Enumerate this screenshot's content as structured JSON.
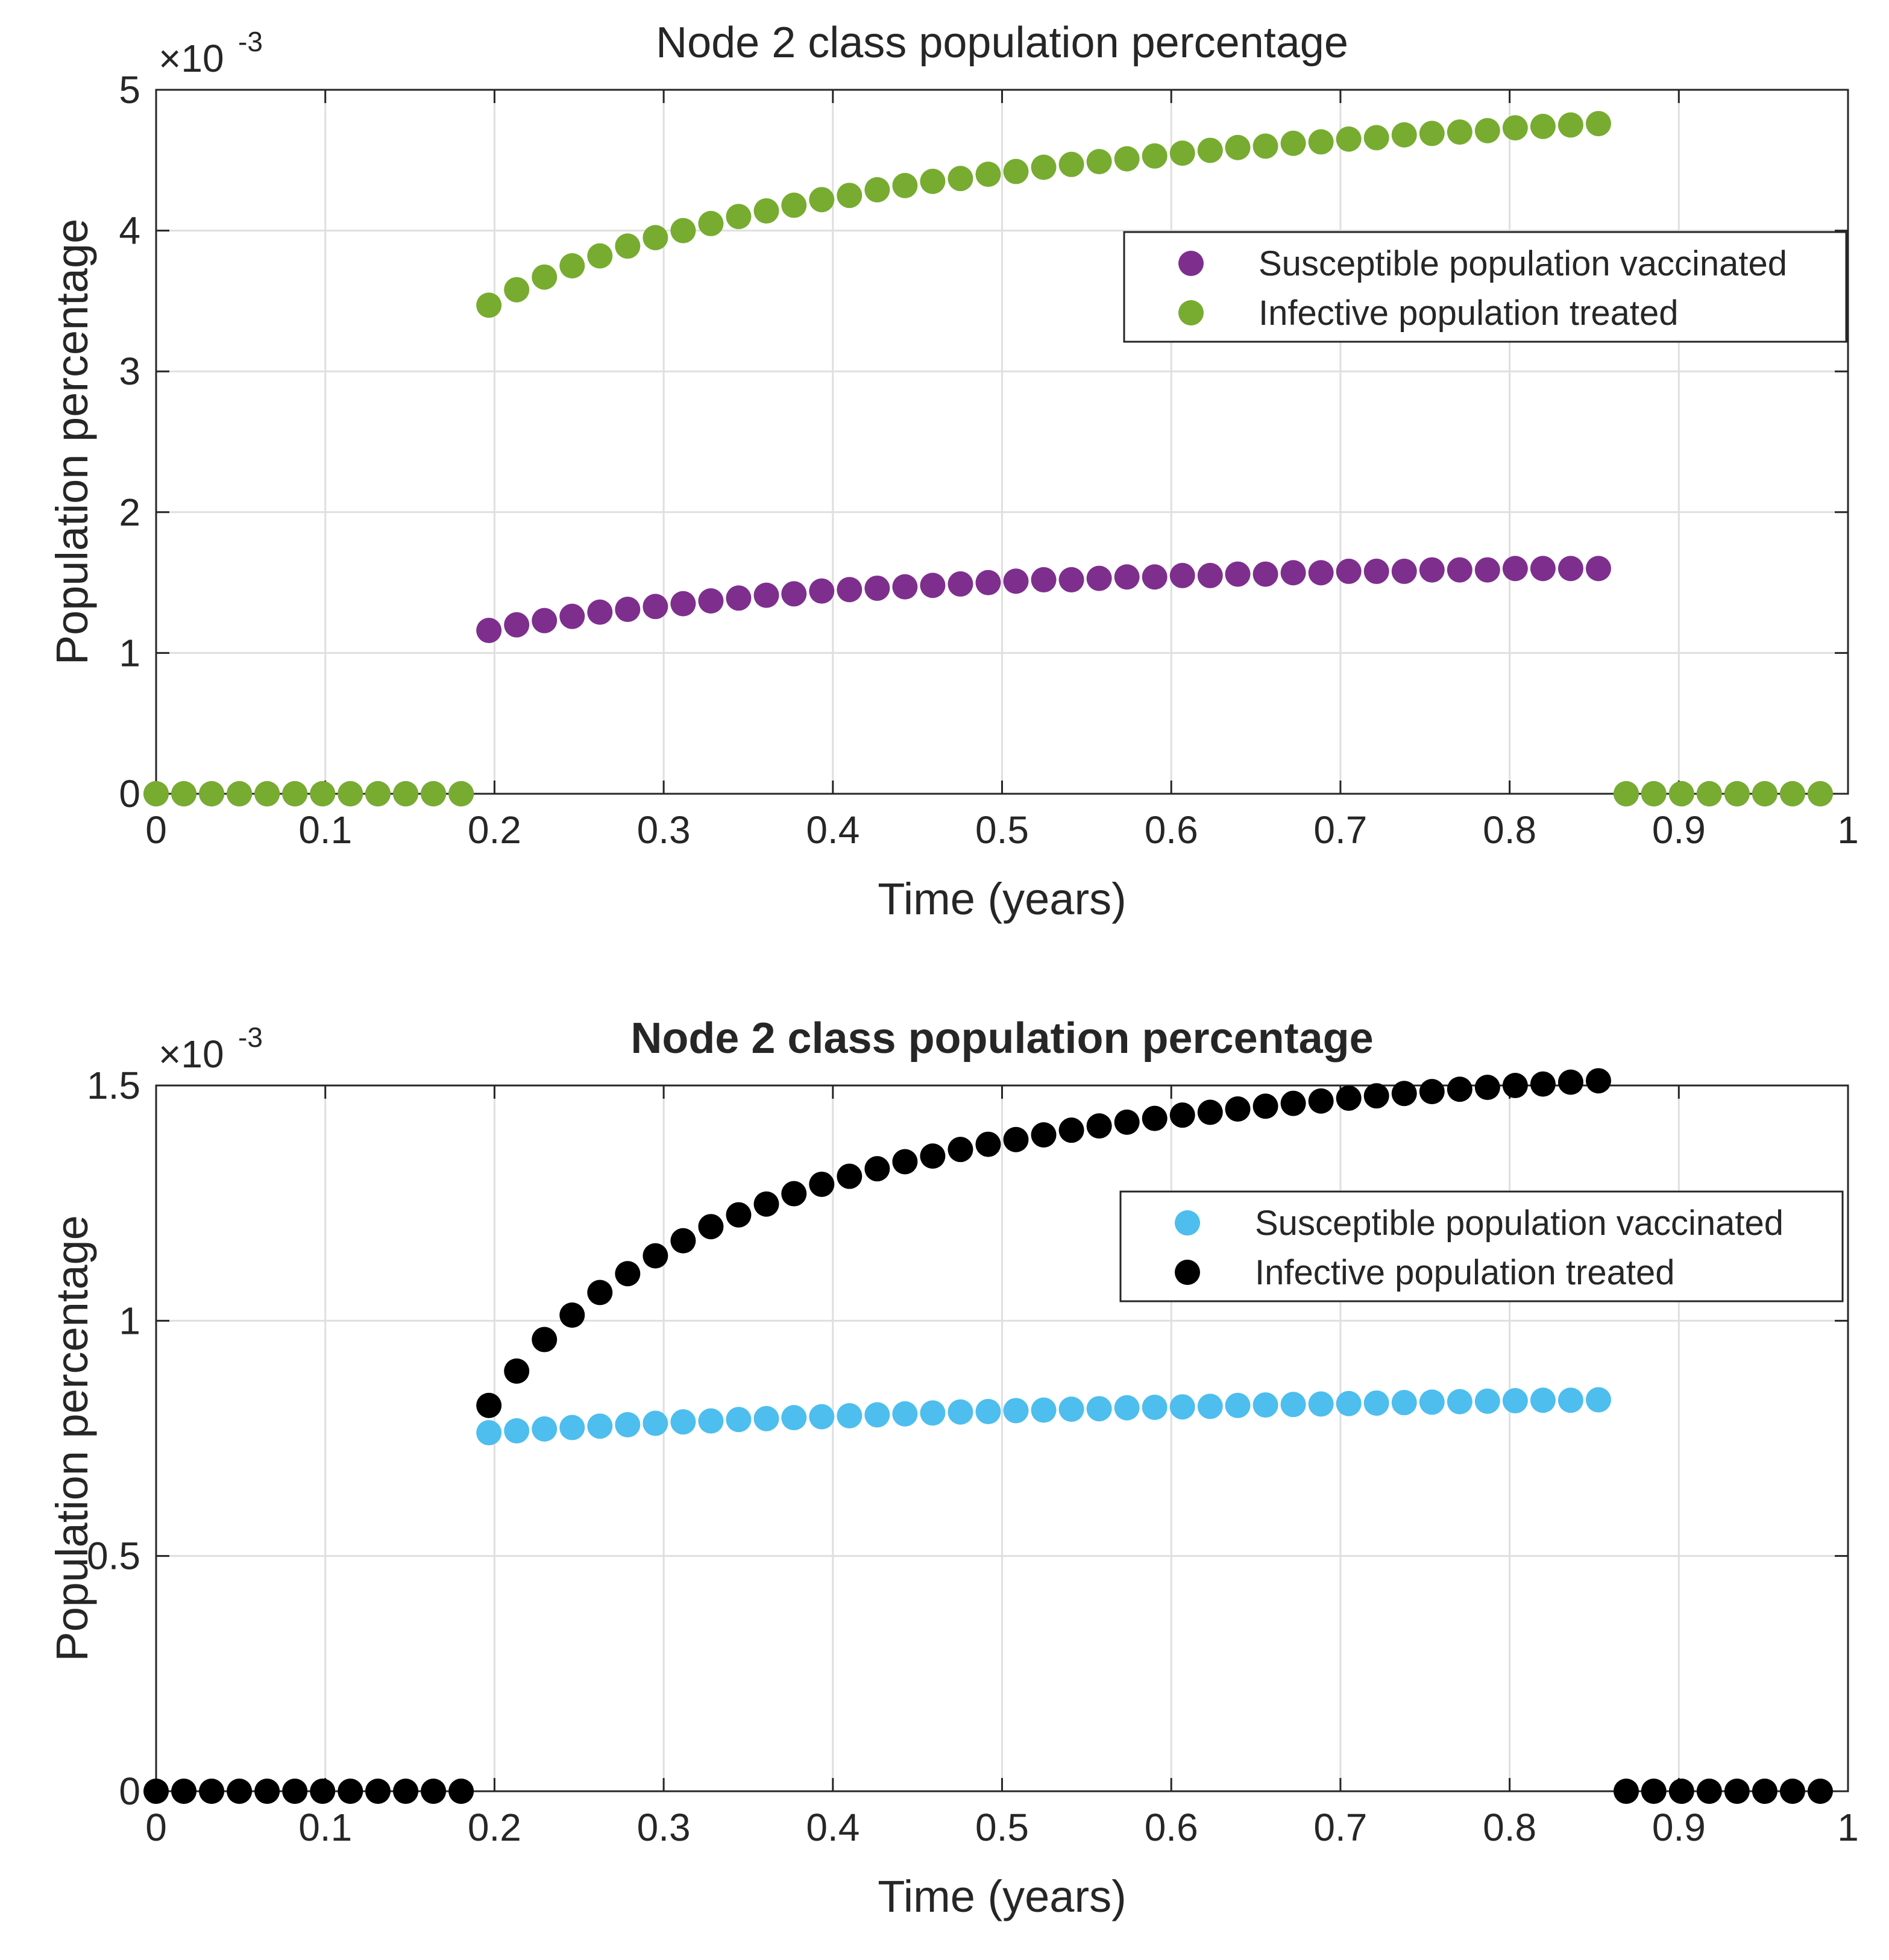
{
  "charts": [
    {
      "title": "Node 2 class population percentage",
      "title_bold": false,
      "xlabel": "Time (years)",
      "ylabel": "Population percentage",
      "exponent_base": "×10",
      "exponent_power": "-3",
      "legend_labels": [
        "Susceptible population vaccinated",
        "Infective population treated"
      ],
      "x_ticks": [
        "0",
        "0.1",
        "0.2",
        "0.3",
        "0.4",
        "0.5",
        "0.6",
        "0.7",
        "0.8",
        "0.9",
        "1"
      ],
      "y_ticks": [
        "0",
        "1",
        "2",
        "3",
        "4",
        "5"
      ]
    },
    {
      "title": "Node 2 class population percentage",
      "title_bold": true,
      "xlabel": "Time (years)",
      "ylabel": "Population percentage",
      "exponent_base": "×10",
      "exponent_power": "-3",
      "legend_labels": [
        "Susceptible population vaccinated",
        "Infective population treated"
      ],
      "x_ticks": [
        "0",
        "0.1",
        "0.2",
        "0.3",
        "0.4",
        "0.5",
        "0.6",
        "0.7",
        "0.8",
        "0.9",
        "1"
      ],
      "y_ticks": [
        "0",
        "0.5",
        "1",
        "1.5"
      ]
    }
  ],
  "chart_data": [
    {
      "type": "scatter",
      "title": "Node 2 class population percentage",
      "xlabel": "Time (years)",
      "ylabel": "Population percentage",
      "y_scale": "×10^-3",
      "xlim": [
        0,
        1
      ],
      "ylim": [
        0,
        5
      ],
      "grid": true,
      "legend_location": "upper-right",
      "x": [
        0,
        0.0164,
        0.0328,
        0.0492,
        0.0656,
        0.082,
        0.0984,
        0.1148,
        0.1311,
        0.1475,
        0.1639,
        0.1803,
        0.1967,
        0.2131,
        0.2295,
        0.2459,
        0.2623,
        0.2787,
        0.2951,
        0.3115,
        0.3279,
        0.3443,
        0.3607,
        0.377,
        0.3934,
        0.4098,
        0.4262,
        0.4426,
        0.459,
        0.4754,
        0.4918,
        0.5082,
        0.5246,
        0.541,
        0.5574,
        0.5738,
        0.5902,
        0.6066,
        0.623,
        0.6393,
        0.6557,
        0.6721,
        0.6885,
        0.7049,
        0.7213,
        0.7377,
        0.7541,
        0.7705,
        0.7869,
        0.8033,
        0.8197,
        0.8361,
        0.8525,
        0.8689,
        0.8852,
        0.9016,
        0.918,
        0.9344,
        0.9508,
        0.9672,
        0.9836
      ],
      "series": [
        {
          "name": "Susceptible population vaccinated",
          "color": "#7E2F8E",
          "values": [
            0,
            0,
            0,
            0,
            0,
            0,
            0,
            0,
            0,
            0,
            0,
            0,
            1.16,
            1.2,
            1.23,
            1.26,
            1.29,
            1.31,
            1.33,
            1.35,
            1.37,
            1.39,
            1.41,
            1.42,
            1.44,
            1.45,
            1.46,
            1.47,
            1.48,
            1.49,
            1.5,
            1.51,
            1.52,
            1.52,
            1.53,
            1.54,
            1.54,
            1.55,
            1.55,
            1.56,
            1.56,
            1.57,
            1.57,
            1.58,
            1.58,
            1.58,
            1.59,
            1.59,
            1.59,
            1.6,
            1.6,
            1.6,
            1.6,
            0,
            0,
            0,
            0,
            0,
            0,
            0,
            0
          ]
        },
        {
          "name": "Infective population treated",
          "color": "#77AC30",
          "values": [
            0,
            0,
            0,
            0,
            0,
            0,
            0,
            0,
            0,
            0,
            0,
            0,
            3.47,
            3.58,
            3.67,
            3.75,
            3.82,
            3.89,
            3.95,
            4.0,
            4.05,
            4.1,
            4.14,
            4.18,
            4.22,
            4.25,
            4.29,
            4.32,
            4.35,
            4.37,
            4.4,
            4.42,
            4.45,
            4.47,
            4.49,
            4.51,
            4.53,
            4.55,
            4.57,
            4.59,
            4.6,
            4.62,
            4.63,
            4.65,
            4.66,
            4.68,
            4.69,
            4.7,
            4.71,
            4.73,
            4.74,
            4.75,
            4.76,
            0,
            0,
            0,
            0,
            0,
            0,
            0,
            0
          ]
        }
      ]
    },
    {
      "type": "scatter",
      "title": "Node 2 class population percentage",
      "xlabel": "Time (years)",
      "ylabel": "Population percentage",
      "y_scale": "×10^-3",
      "xlim": [
        0,
        1
      ],
      "ylim": [
        0,
        1.5
      ],
      "grid": true,
      "legend_location": "upper-right",
      "x": [
        0,
        0.0164,
        0.0328,
        0.0492,
        0.0656,
        0.082,
        0.0984,
        0.1148,
        0.1311,
        0.1475,
        0.1639,
        0.1803,
        0.1967,
        0.2131,
        0.2295,
        0.2459,
        0.2623,
        0.2787,
        0.2951,
        0.3115,
        0.3279,
        0.3443,
        0.3607,
        0.377,
        0.3934,
        0.4098,
        0.4262,
        0.4426,
        0.459,
        0.4754,
        0.4918,
        0.5082,
        0.5246,
        0.541,
        0.5574,
        0.5738,
        0.5902,
        0.6066,
        0.623,
        0.6393,
        0.6557,
        0.6721,
        0.6885,
        0.7049,
        0.7213,
        0.7377,
        0.7541,
        0.7705,
        0.7869,
        0.8033,
        0.8197,
        0.8361,
        0.8525,
        0.8689,
        0.8852,
        0.9016,
        0.918,
        0.9344,
        0.9508,
        0.9672,
        0.9836
      ],
      "series": [
        {
          "name": "Susceptible population vaccinated",
          "color": "#4DBEEE",
          "values": [
            0,
            0,
            0,
            0,
            0,
            0,
            0,
            0,
            0,
            0,
            0,
            0,
            0.762,
            0.766,
            0.77,
            0.773,
            0.776,
            0.779,
            0.782,
            0.785,
            0.787,
            0.79,
            0.792,
            0.794,
            0.796,
            0.798,
            0.8,
            0.802,
            0.804,
            0.806,
            0.807,
            0.809,
            0.81,
            0.812,
            0.813,
            0.815,
            0.816,
            0.817,
            0.818,
            0.82,
            0.821,
            0.822,
            0.823,
            0.824,
            0.825,
            0.826,
            0.827,
            0.828,
            0.829,
            0.83,
            0.831,
            0.831,
            0.832,
            0,
            0,
            0,
            0,
            0,
            0,
            0,
            0
          ]
        },
        {
          "name": "Infective population treated",
          "color": "#000000",
          "values": [
            0,
            0,
            0,
            0,
            0,
            0,
            0,
            0,
            0,
            0,
            0,
            0,
            0.82,
            0.893,
            0.96,
            1.012,
            1.06,
            1.1,
            1.138,
            1.17,
            1.2,
            1.225,
            1.248,
            1.27,
            1.29,
            1.307,
            1.323,
            1.338,
            1.35,
            1.364,
            1.375,
            1.385,
            1.395,
            1.405,
            1.414,
            1.422,
            1.43,
            1.437,
            1.443,
            1.45,
            1.456,
            1.462,
            1.467,
            1.473,
            1.478,
            1.483,
            1.487,
            1.492,
            1.496,
            1.5,
            1.503,
            1.507,
            1.51,
            0,
            0,
            0,
            0,
            0,
            0,
            0,
            0
          ]
        }
      ]
    }
  ]
}
